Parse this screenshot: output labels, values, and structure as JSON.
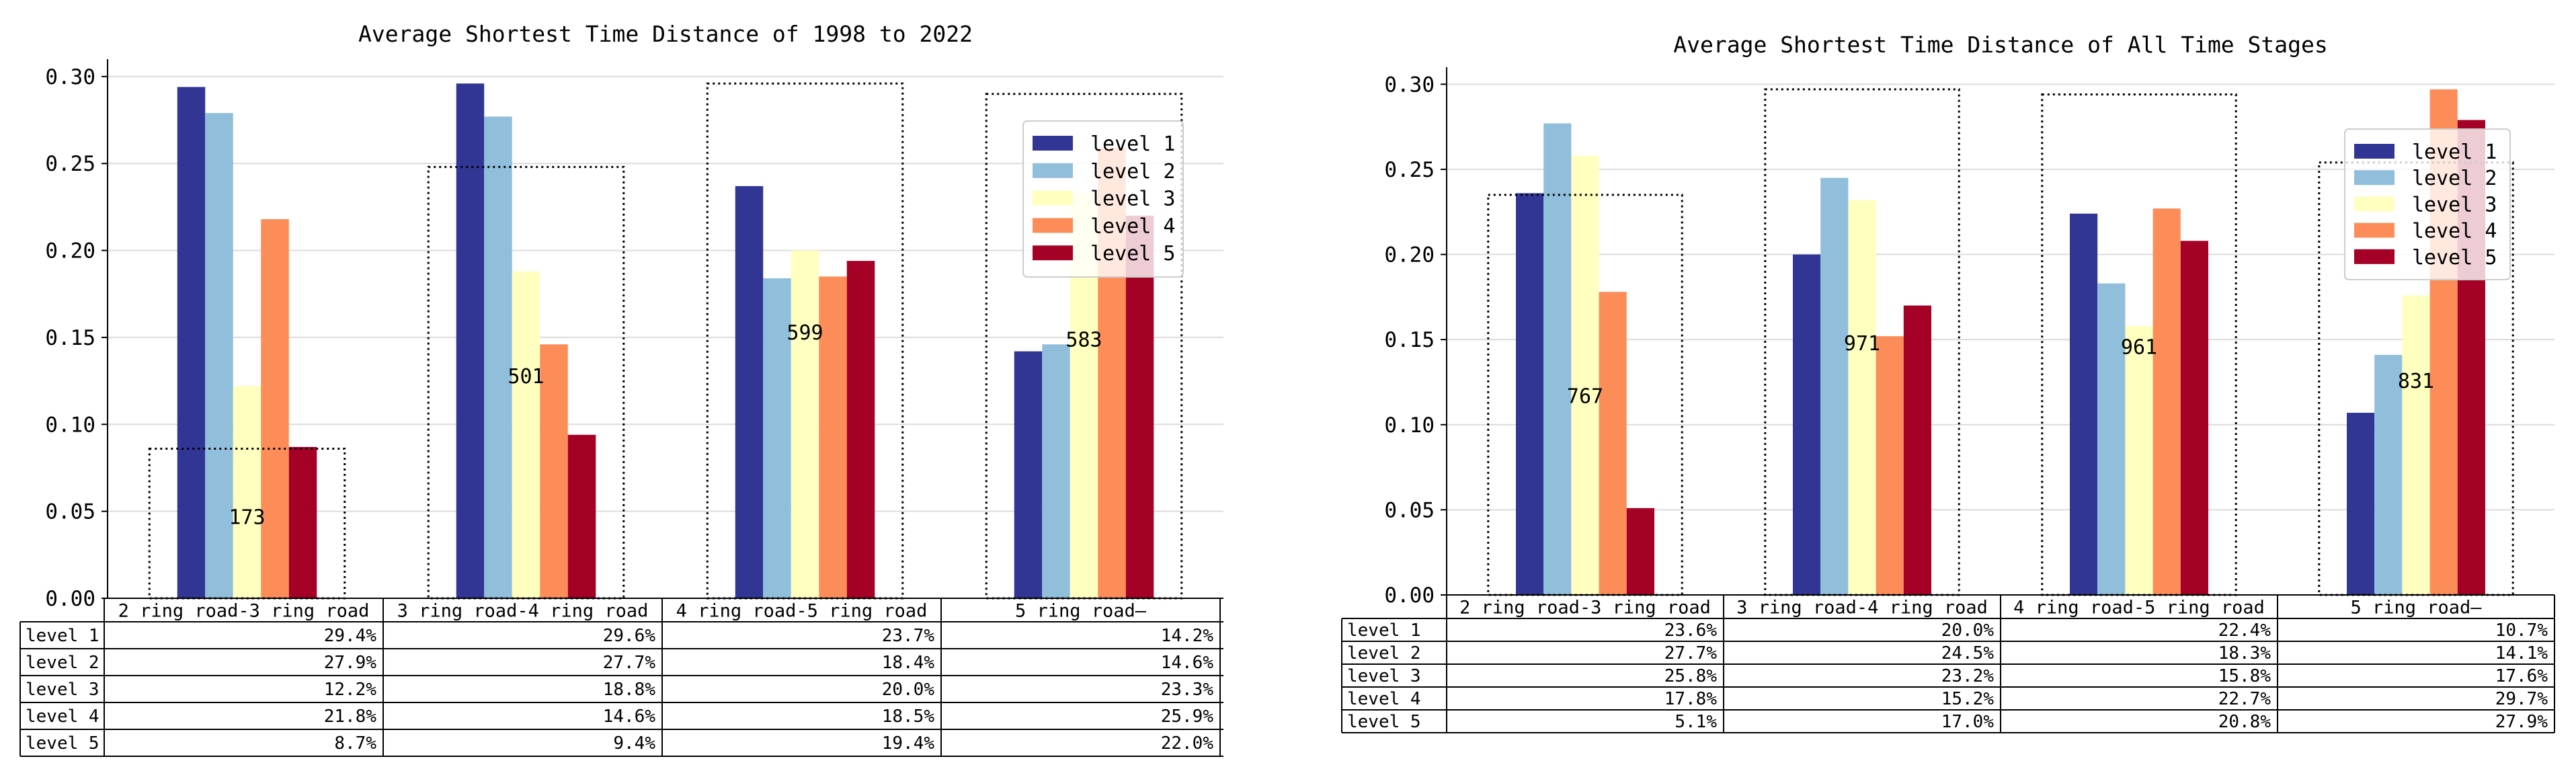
{
  "colors": {
    "level_1": "#313695",
    "level_2": "#91bfdb",
    "level_3": "#ffffbf",
    "level_4": "#fc8d59",
    "level_5": "#a50026",
    "grid": "#dcdcdc",
    "axis": "#000000"
  },
  "chart_data": [
    {
      "type": "bar",
      "title": "Average Shortest Time Distance of 1998 to 2022",
      "categories": [
        "2 ring road-3 ring road",
        "3 ring road-4 ring road",
        "4 ring road-5 ring road",
        "5 ring road—"
      ],
      "series": [
        {
          "name": "level 1",
          "values": [
            0.294,
            0.296,
            0.237,
            0.142
          ]
        },
        {
          "name": "level 2",
          "values": [
            0.279,
            0.277,
            0.184,
            0.146
          ]
        },
        {
          "name": "level 3",
          "values": [
            0.122,
            0.188,
            0.2,
            0.233
          ]
        },
        {
          "name": "level 4",
          "values": [
            0.218,
            0.146,
            0.185,
            0.259
          ]
        },
        {
          "name": "level 5",
          "values": [
            0.087,
            0.094,
            0.194,
            0.22
          ]
        }
      ],
      "counts": [
        "173",
        "501",
        "599",
        "583"
      ],
      "count_values": [
        0.047,
        0.128,
        0.153,
        0.149
      ],
      "box_heights": [
        0.086,
        0.248,
        0.296,
        0.29
      ],
      "yticks": [
        0.0,
        0.05,
        0.1,
        0.15,
        0.2,
        0.25,
        0.3
      ],
      "ytick_labels": [
        "0.00",
        "0.05",
        "0.10",
        "0.15",
        "0.20",
        "0.25",
        "0.30"
      ],
      "ylim": [
        0,
        0.31
      ],
      "legend": "upper-right",
      "grid": true,
      "table": {
        "row_labels": [
          "level 1",
          "level 2",
          "level 3",
          "level 4",
          "level 5"
        ],
        "cells": [
          [
            "29.4%",
            "29.6%",
            "23.7%",
            "14.2%"
          ],
          [
            "27.9%",
            "27.7%",
            "18.4%",
            "14.6%"
          ],
          [
            "12.2%",
            "18.8%",
            "20.0%",
            "23.3%"
          ],
          [
            "21.8%",
            "14.6%",
            "18.5%",
            "25.9%"
          ],
          [
            "8.7%",
            "9.4%",
            "19.4%",
            "22.0%"
          ]
        ]
      }
    },
    {
      "type": "bar",
      "title": "Average Shortest Time Distance of All Time Stages",
      "categories": [
        "2 ring road-3 ring road",
        "3 ring road-4 ring road",
        "4 ring road-5 ring road",
        "5 ring road—"
      ],
      "series": [
        {
          "name": "level 1",
          "values": [
            0.236,
            0.2,
            0.224,
            0.107
          ]
        },
        {
          "name": "level 2",
          "values": [
            0.277,
            0.245,
            0.183,
            0.141
          ]
        },
        {
          "name": "level 3",
          "values": [
            0.258,
            0.232,
            0.158,
            0.176
          ]
        },
        {
          "name": "level 4",
          "values": [
            0.178,
            0.152,
            0.227,
            0.297
          ]
        },
        {
          "name": "level 5",
          "values": [
            0.051,
            0.17,
            0.208,
            0.279
          ]
        }
      ],
      "counts": [
        "767",
        "971",
        "961",
        "831"
      ],
      "count_values": [
        0.117,
        0.148,
        0.146,
        0.126
      ],
      "box_heights": [
        0.235,
        0.297,
        0.294,
        0.254
      ],
      "yticks": [
        0.0,
        0.05,
        0.1,
        0.15,
        0.2,
        0.25,
        0.3
      ],
      "ytick_labels": [
        "0.00",
        "0.05",
        "0.10",
        "0.15",
        "0.20",
        "0.25",
        "0.30"
      ],
      "ylim": [
        0,
        0.31
      ],
      "legend": "upper-right",
      "grid": true,
      "table": {
        "row_labels": [
          "level 1",
          "level 2",
          "level 3",
          "level 4",
          "level 5"
        ],
        "cells": [
          [
            "23.6%",
            "20.0%",
            "22.4%",
            "10.7%"
          ],
          [
            "27.7%",
            "24.5%",
            "18.3%",
            "14.1%"
          ],
          [
            "25.8%",
            "23.2%",
            "15.8%",
            "17.6%"
          ],
          [
            "17.8%",
            "15.2%",
            "22.7%",
            "29.7%"
          ],
          [
            "5.1%",
            "17.0%",
            "20.8%",
            "27.9%"
          ]
        ]
      }
    }
  ]
}
